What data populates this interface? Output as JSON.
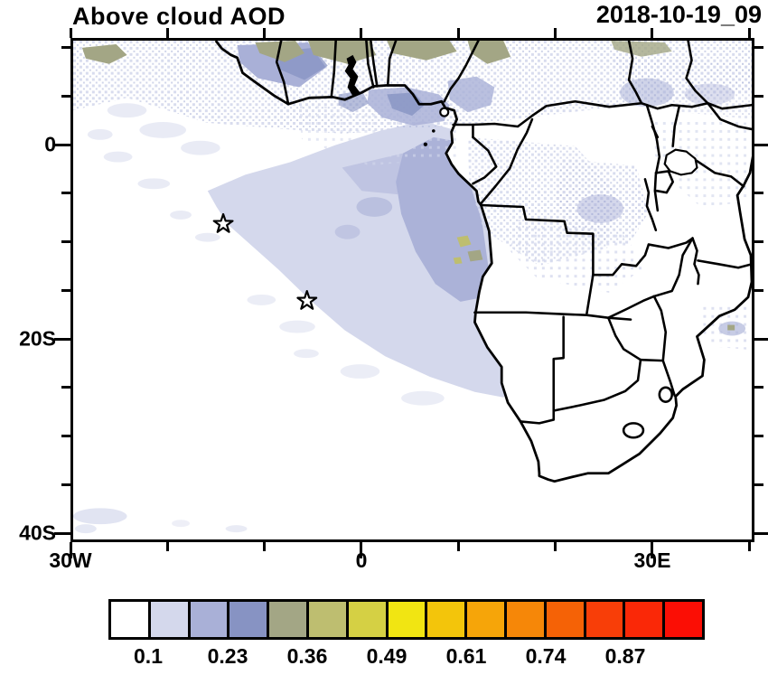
{
  "header": {
    "title": "Above cloud AOD",
    "timestamp": "2018-10-19_09"
  },
  "axes": {
    "x": {
      "tick_values_deg": [
        -30,
        -20,
        -10,
        0,
        10,
        20,
        30,
        40
      ],
      "labels": {
        "-30": "30W",
        "0": "0",
        "30": "30E"
      }
    },
    "y": {
      "tick_values_deg": [
        10,
        5,
        0,
        -5,
        -10,
        -15,
        -20,
        -25,
        -30,
        -35,
        -40
      ],
      "labels": {
        "0": "0",
        "-20": "20S",
        "-40": "40S"
      }
    }
  },
  "colorbar": {
    "cell_colors": [
      "#ffffff",
      "#d4d8ec",
      "#a9b0d7",
      "#8793c3",
      "#a3a685",
      "#bebe70",
      "#d5d044",
      "#f1e512",
      "#f3c50b",
      "#f6a509",
      "#f68708",
      "#f56206",
      "#f83e08",
      "#fa2807",
      "#fb0e05"
    ],
    "tick_labels": [
      "0.1",
      "0.23",
      "0.36",
      "0.49",
      "0.61",
      "0.74",
      "0.87"
    ]
  },
  "palette": {
    "shade_light": "#d4d8ec",
    "shade_medium": "#a9b0d7",
    "shade_dark": "#8793c3",
    "shade_olive_gray": "#a3a685",
    "shade_olive": "#bebe70",
    "line": "#000000",
    "background": "#ffffff"
  },
  "markers": [
    {
      "symbol": "open-star",
      "lon_deg": -14.4,
      "lat_deg": -8.1
    },
    {
      "symbol": "open-star",
      "lon_deg": -5.7,
      "lat_deg": -16.1
    }
  ],
  "chart_data": {
    "type": "heatmap",
    "title": "Above cloud AOD",
    "timestamp_label": "2018-10-19_09",
    "x_axis": {
      "labeled_ticks": [
        "30W",
        "0",
        "30E"
      ],
      "minor_tick_interval_deg": 10,
      "range_deg": [
        -30,
        40
      ]
    },
    "y_axis": {
      "labeled_ticks": [
        "0",
        "20S",
        "40S"
      ],
      "minor_tick_interval_deg": 5,
      "range_deg": [
        -41,
        11
      ]
    },
    "colorbar": {
      "n_cells": 15,
      "labeled_boundaries": [
        0.1,
        0.23,
        0.36,
        0.49,
        0.61,
        0.74,
        0.87
      ],
      "cell_value_width_est": 0.065,
      "under_color": "#ffffff",
      "cell_colors": [
        "#ffffff",
        "#d4d8ec",
        "#a9b0d7",
        "#8793c3",
        "#a3a685",
        "#bebe70",
        "#d5d044",
        "#f1e512",
        "#f3c50b",
        "#f6a509",
        "#f68708",
        "#f56206",
        "#f83e08",
        "#fa2807",
        "#fb0e05"
      ]
    },
    "markers": [
      {
        "symbol": "open-star",
        "lon_deg": -14.4,
        "lat_deg": -8.1
      },
      {
        "symbol": "open-star",
        "lon_deg": -5.7,
        "lat_deg": -16.1
      }
    ],
    "shaded_regions": [
      {
        "area": "Wide SE Atlantic ocean sheet, ~2S to ~22S, west of the African coast",
        "aod_est": "0.10-0.17"
      },
      {
        "area": "Core offshore Congo/Angola coast",
        "aod_est": "0.17-0.23 with small 0.30-0.42 specks"
      },
      {
        "area": "Gulf of Guinea coastal band (Ghana-Nigeria-Cameroon)",
        "aod_est": "0.17-0.30"
      },
      {
        "area": "Northern band 5-11N along West Africa",
        "aod_est": "0.23-0.42 olive-gray patches"
      },
      {
        "area": "Central Africa (Congo basin) speckle",
        "aod_est": "0.10-0.23"
      },
      {
        "area": "East Africa scattered speckle",
        "aod_est": "~0.10"
      },
      {
        "area": "Mozambique Channel patch near 17-20S, 37-40E",
        "aod_est": "0.10-0.23"
      },
      {
        "area": "Far SW corner wisps near 40S",
        "aod_est": "~0.10"
      }
    ]
  }
}
